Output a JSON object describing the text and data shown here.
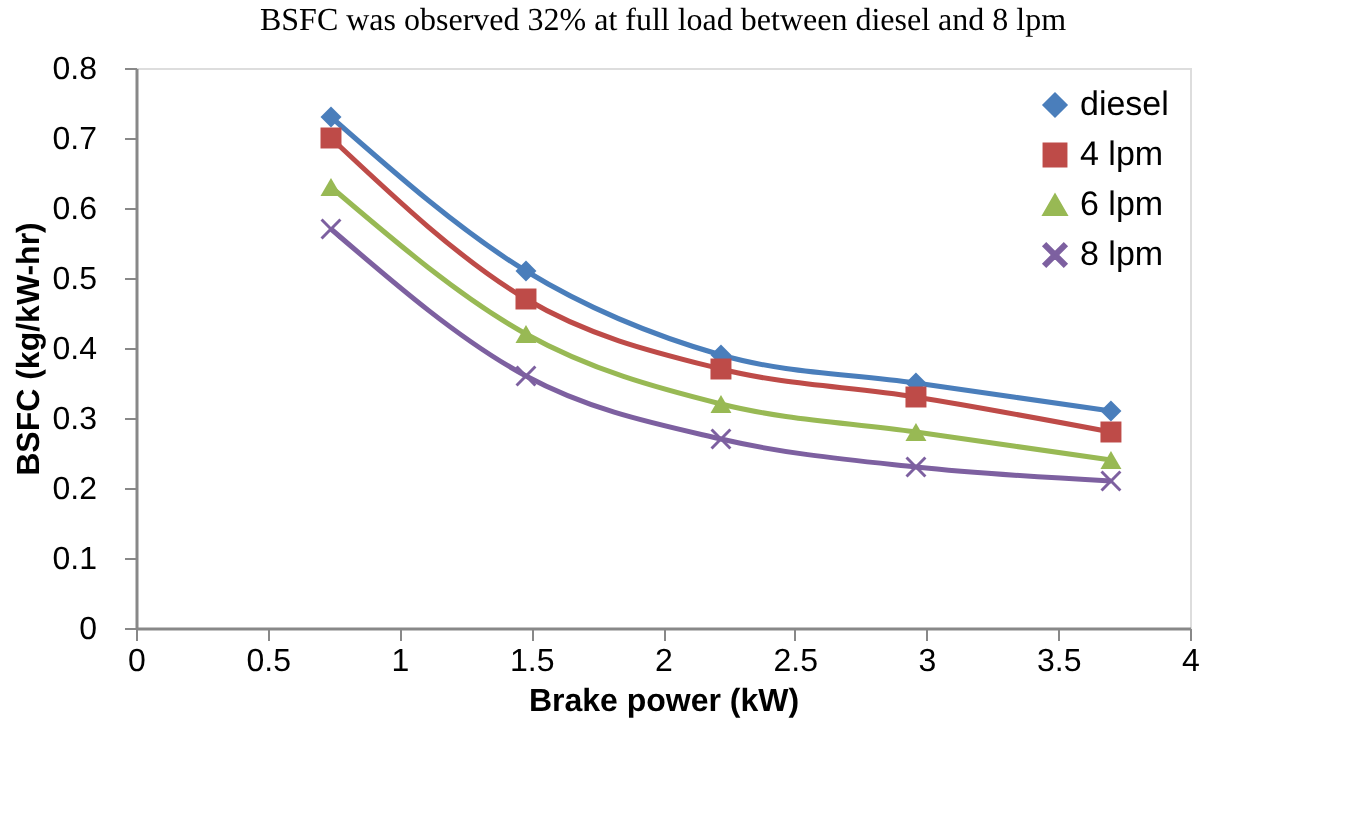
{
  "chart_data": {
    "type": "line",
    "annotations": [
      "BSFC was observed 32% at full load between diesel and 8 lpm"
    ],
    "xlabel": "Brake power (kW)",
    "ylabel": "BSFC (kg/kW-hr)",
    "x": [
      0.74,
      1.48,
      2.22,
      2.96,
      3.7
    ],
    "series": [
      {
        "name": "diesel",
        "color": "#4a7ebb",
        "marker": "diamond",
        "values": [
          0.73,
          0.51,
          0.39,
          0.35,
          0.31
        ]
      },
      {
        "name": "4 lpm",
        "color": "#be4b48",
        "marker": "square",
        "values": [
          0.7,
          0.47,
          0.37,
          0.33,
          0.28
        ]
      },
      {
        "name": "6 lpm",
        "color": "#98b954",
        "marker": "triangle",
        "values": [
          0.63,
          0.42,
          0.32,
          0.28,
          0.24
        ]
      },
      {
        "name": "8 lpm",
        "color": "#7d60a0",
        "marker": "cross",
        "values": [
          0.57,
          0.36,
          0.27,
          0.23,
          0.21
        ]
      }
    ],
    "xlim": [
      0,
      4
    ],
    "xticks": [
      0,
      0.5,
      1,
      1.5,
      2,
      2.5,
      3,
      3.5,
      4
    ],
    "ylim": [
      0,
      0.8
    ],
    "yticks": [
      0,
      0.1,
      0.2,
      0.3,
      0.4,
      0.5,
      0.6,
      0.7,
      0.8
    ],
    "grid": false,
    "legend": "top right",
    "line_style": "solid"
  }
}
